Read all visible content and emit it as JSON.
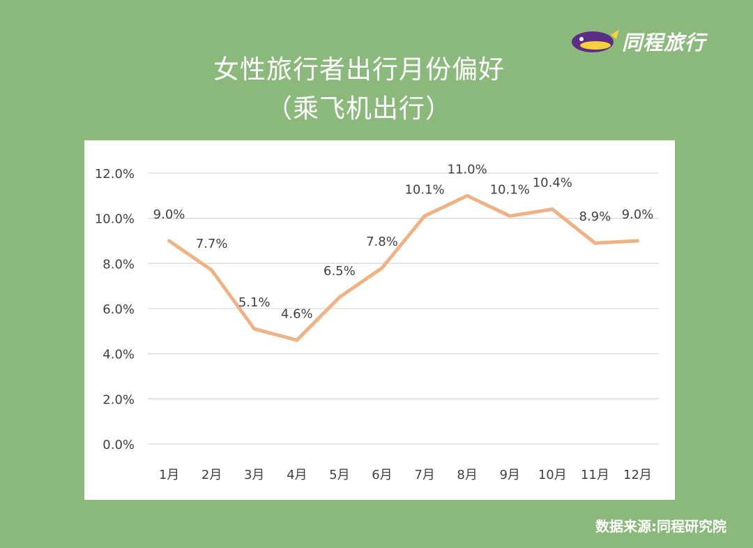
{
  "brand": {
    "name": "同程旅行",
    "colors": {
      "purple": "#5b2d86",
      "yellow": "#f6d23a"
    }
  },
  "title": {
    "line1": "女性旅行者出行月份偏好",
    "line2": "（乘飞机出行）"
  },
  "source": "数据来源:同程研究院",
  "colors": {
    "background": "#8bb87b",
    "line": "#efb285",
    "grid": "#d9d9d9",
    "text": "#404040"
  },
  "chart_data": {
    "type": "line",
    "categories": [
      "1月",
      "2月",
      "3月",
      "4月",
      "5月",
      "6月",
      "7月",
      "8月",
      "9月",
      "10月",
      "11月",
      "12月"
    ],
    "values": [
      9.0,
      7.7,
      5.1,
      4.6,
      6.5,
      7.8,
      10.1,
      11.0,
      10.1,
      10.4,
      8.9,
      9.0
    ],
    "data_labels": [
      "9.0%",
      "7.7%",
      "5.1%",
      "4.6%",
      "6.5%",
      "7.8%",
      "10.1%",
      "11.0%",
      "10.1%",
      "10.4%",
      "8.9%",
      "9.0%"
    ],
    "y_ticks": [
      0,
      2,
      4,
      6,
      8,
      10,
      12
    ],
    "y_tick_labels": [
      "0.0%",
      "2.0%",
      "4.0%",
      "6.0%",
      "8.0%",
      "10.0%",
      "12.0%"
    ],
    "ylim": [
      0,
      12
    ],
    "grid": true,
    "legend": "none"
  }
}
